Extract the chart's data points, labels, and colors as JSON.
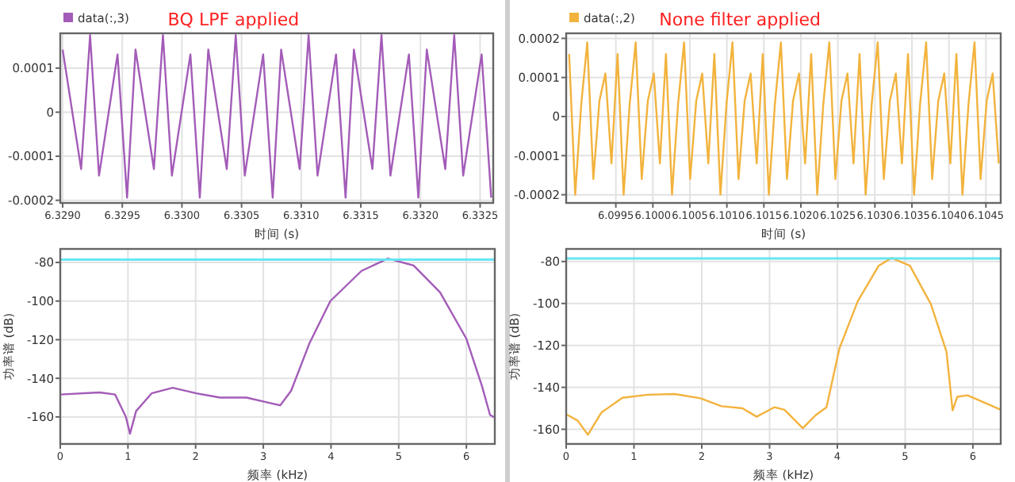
{
  "chart_data": [
    {
      "type": "line",
      "title": "BQ LPF applied",
      "xlabel": "时间 (s)",
      "legend": "top left",
      "grid": true,
      "xlim": [
        6.32898,
        6.33261
      ],
      "ylim": [
        -0.000206,
        0.000179
      ],
      "xticks": [
        {
          "value": 6.329,
          "label": "6.3290"
        },
        {
          "value": 6.3295,
          "label": "6.3295"
        },
        {
          "value": 6.33,
          "label": "6.3300"
        },
        {
          "value": 6.3305,
          "label": "6.3305"
        },
        {
          "value": 6.331,
          "label": "6.3310"
        },
        {
          "value": 6.3315,
          "label": "6.3315"
        },
        {
          "value": 6.332,
          "label": "6.3320"
        },
        {
          "value": 6.3325,
          "label": "6.3325"
        }
      ],
      "yticks": [
        0.0001,
        0,
        -0.0001,
        -0.0002
      ],
      "series": [
        {
          "name": "data(:,3)",
          "color": "#a35cb8",
          "x": [
            6.329,
            6.329155,
            6.32923,
            6.329305,
            6.32946,
            6.32954,
            6.329611,
            6.329765,
            6.329841,
            6.329916,
            6.330071,
            6.33015,
            6.330221,
            6.330376,
            6.330451,
            6.330527,
            6.330681,
            6.330761,
            6.330832,
            6.330987,
            6.331062,
            6.331137,
            6.331292,
            6.331372,
            6.331442,
            6.331597,
            6.331673,
            6.331748,
            6.331903,
            6.331982,
            6.332053,
            6.332208,
            6.332283,
            6.332358,
            6.332513,
            6.332593
          ],
          "values": [
            0.000142,
            -0.000129,
            0.000175,
            -0.000144,
            0.000131,
            -0.000194,
            0.000142,
            -0.000129,
            0.000175,
            -0.000144,
            0.000131,
            -0.000194,
            0.000142,
            -0.000129,
            0.000175,
            -0.000144,
            0.000131,
            -0.000194,
            0.000142,
            -0.000129,
            0.000175,
            -0.000144,
            0.000131,
            -0.000194,
            0.000142,
            -0.000129,
            0.000175,
            -0.000144,
            0.000131,
            -0.000194,
            0.000142,
            -0.000129,
            0.000175,
            -0.000144,
            0.000131,
            -0.000194
          ]
        }
      ]
    },
    {
      "type": "line",
      "title": "None filter applied",
      "xlabel": "时间 (s)",
      "legend": "top left",
      "grid": true,
      "xlim": [
        6.098829,
        6.1047
      ],
      "ylim": [
        -0.000221,
        0.000213
      ],
      "xticks": [
        {
          "value": 6.0995,
          "label": "6.0995"
        },
        {
          "value": 6.1,
          "label": "6.1000"
        },
        {
          "value": 6.1005,
          "label": "6.1005"
        },
        {
          "value": 6.101,
          "label": "6.1010"
        },
        {
          "value": 6.1015,
          "label": "6.1015"
        },
        {
          "value": 6.102,
          "label": "6.1020"
        },
        {
          "value": 6.1025,
          "label": "6.1025"
        },
        {
          "value": 6.103,
          "label": "6.1030"
        },
        {
          "value": 6.1035,
          "label": "6.1035"
        },
        {
          "value": 6.104,
          "label": "6.1040"
        },
        {
          "value": 6.1045,
          "label": "6.1045"
        }
      ],
      "yticks": [
        0.0002,
        0.0001,
        0,
        -0.0001,
        -0.0002
      ],
      "series": [
        {
          "name": "data(:,2)",
          "color": "#f2b33d",
          "x": [
            6.098869,
            6.098951,
            6.099032,
            6.099114,
            6.099196,
            6.099278,
            6.099359,
            6.099441,
            6.099523,
            6.099605,
            6.099686,
            6.099768,
            6.09985,
            6.099932,
            6.100013,
            6.100095,
            6.100177,
            6.100259,
            6.10034,
            6.100422,
            6.100504,
            6.100586,
            6.100667,
            6.100749,
            6.100831,
            6.100913,
            6.100994,
            6.101076,
            6.101158,
            6.10124,
            6.101321,
            6.101403,
            6.101485,
            6.101567,
            6.101648,
            6.10173,
            6.101812,
            6.101894,
            6.101975,
            6.102057,
            6.102139,
            6.102221,
            6.102302,
            6.102384,
            6.102466,
            6.102548,
            6.102629,
            6.102711,
            6.102793,
            6.102875,
            6.102956,
            6.103038,
            6.10312,
            6.103202,
            6.103283,
            6.103365,
            6.103447,
            6.103529,
            6.10361,
            6.103692,
            6.103774,
            6.103856,
            6.103937,
            6.104019,
            6.104101,
            6.104183,
            6.104264,
            6.104346,
            6.104428,
            6.10451,
            6.104591,
            6.104673
          ],
          "values": [
            0.00016,
            -0.0002,
            3e-05,
            0.00019,
            -0.00016,
            4e-05,
            0.00011,
            -0.00012,
            0.00016,
            -0.0002,
            3e-05,
            0.00019,
            -0.00016,
            4e-05,
            0.00011,
            -0.00012,
            0.00016,
            -0.0002,
            3e-05,
            0.00019,
            -0.00016,
            4e-05,
            0.00011,
            -0.00012,
            0.00016,
            -0.0002,
            3e-05,
            0.00019,
            -0.00016,
            4e-05,
            0.00011,
            -0.00012,
            0.00016,
            -0.0002,
            3e-05,
            0.00019,
            -0.00016,
            4e-05,
            0.00011,
            -0.00012,
            0.00016,
            -0.0002,
            3e-05,
            0.00019,
            -0.00016,
            4e-05,
            0.00011,
            -0.00012,
            0.00016,
            -0.0002,
            3e-05,
            0.00019,
            -0.00016,
            4e-05,
            0.00011,
            -0.00012,
            0.00016,
            -0.0002,
            3e-05,
            0.00019,
            -0.00016,
            4e-05,
            0.00011,
            -0.00012,
            0.00016,
            -0.0002,
            3e-05,
            0.00019,
            -0.00016,
            4e-05,
            0.00011,
            -0.00012
          ]
        }
      ]
    },
    {
      "type": "line",
      "xlabel": "频率 (kHz)",
      "ylabel": "功率谱 (dB)",
      "grid": true,
      "xlim": [
        0,
        6.42
      ],
      "ylim": [
        -174,
        -73
      ],
      "xticks": [
        0,
        1,
        2,
        3,
        4,
        5,
        6
      ],
      "yticks": [
        -80,
        -100,
        -120,
        -140,
        -160
      ],
      "ref_lines": [
        {
          "axis": "y",
          "value": -78.5,
          "color": "#66e6f2"
        }
      ],
      "series": [
        {
          "color": "#a35cb8",
          "x": [
            0,
            0.58,
            0.81,
            0.97,
            1.03,
            1.12,
            1.35,
            1.66,
            2.01,
            2.36,
            2.75,
            3.06,
            3.25,
            3.41,
            3.68,
            3.99,
            4.45,
            4.84,
            5.22,
            5.61,
            6.0,
            6.23,
            6.35,
            6.42
          ],
          "values": [
            -148.4,
            -147.3,
            -148.4,
            -160,
            -168.7,
            -157,
            -147.8,
            -144.9,
            -147.8,
            -150,
            -150,
            -152.5,
            -154,
            -146.5,
            -122,
            -100,
            -84.4,
            -78,
            -81.6,
            -95.4,
            -119.5,
            -144,
            -159,
            -160.3
          ]
        }
      ]
    },
    {
      "type": "line",
      "xlabel": "频率 (kHz)",
      "ylabel": "功率谱 (dB)",
      "grid": true,
      "xlim": [
        0,
        6.41
      ],
      "ylim": [
        -167,
        -74
      ],
      "xticks": [
        0,
        1,
        2,
        3,
        4,
        5,
        6
      ],
      "yticks": [
        -80,
        -100,
        -120,
        -140,
        -160
      ],
      "ref_lines": [
        {
          "axis": "y",
          "value": -78.5,
          "color": "#66e6f2"
        }
      ],
      "series": [
        {
          "color": "#f2b33d",
          "x": [
            0,
            0.17,
            0.32,
            0.52,
            0.83,
            1.21,
            1.6,
            1.98,
            2.29,
            2.6,
            2.81,
            3.07,
            3.22,
            3.49,
            3.68,
            3.84,
            4.03,
            4.3,
            4.61,
            4.8,
            5.07,
            5.38,
            5.61,
            5.7,
            5.77,
            5.92,
            6.15,
            6.41
          ],
          "values": [
            -152.8,
            -155.9,
            -162.6,
            -152,
            -145,
            -143.5,
            -143.2,
            -145.2,
            -149,
            -150,
            -154,
            -149.5,
            -150.7,
            -159.5,
            -153.3,
            -149.5,
            -121.5,
            -99,
            -82,
            -78.3,
            -82,
            -100.3,
            -123,
            -151,
            -144.5,
            -143.8,
            -147,
            -150.7
          ]
        }
      ]
    }
  ]
}
